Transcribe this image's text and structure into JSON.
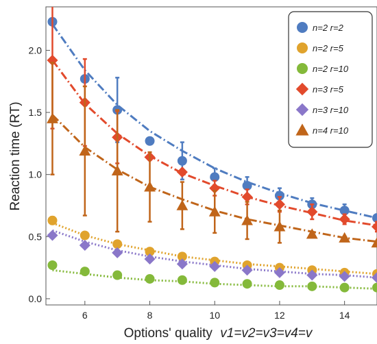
{
  "chart_data": {
    "type": "line",
    "xlabel": "Options' quality",
    "xlabel_math": "v1=v2=v3=v4=v",
    "ylabel": "Reaction time (RT)",
    "xlim": [
      4.8,
      15.0
    ],
    "ylim": [
      -0.05,
      2.35
    ],
    "x_ticks": [
      6,
      8,
      10,
      12,
      14
    ],
    "y_ticks": [
      0.0,
      0.5,
      1.0,
      1.5,
      2.0
    ],
    "x_tick_labels": [
      "6",
      "8",
      "10",
      "12",
      "14"
    ],
    "y_tick_labels": [
      "0.0",
      "0.5",
      "1.0",
      "1.5",
      "2.0"
    ],
    "grid": false,
    "legend_position": "top-right",
    "x": [
      5,
      6,
      7,
      8,
      9,
      10,
      11,
      12,
      13,
      14,
      15
    ],
    "series": [
      {
        "name": "n=2 r=2",
        "color": "#4f7cc0",
        "marker": "circle",
        "dash": "12,4,2,4",
        "values": [
          2.23,
          1.77,
          1.52,
          1.27,
          1.11,
          0.98,
          0.91,
          0.83,
          0.76,
          0.71,
          0.65
        ],
        "errors": [
          0.0,
          0.0,
          0.26,
          0.0,
          0.15,
          0.07,
          0.07,
          0.06,
          0.05,
          0.05,
          0.03
        ],
        "fit": [
          2.21,
          1.84,
          1.56,
          1.35,
          1.19,
          1.05,
          0.94,
          0.85,
          0.77,
          0.71,
          0.65
        ]
      },
      {
        "name": "n=2 r=5",
        "color": "#e0a32d",
        "marker": "circle",
        "dash": "2,3",
        "values": [
          0.63,
          0.51,
          0.44,
          0.38,
          0.34,
          0.3,
          0.27,
          0.25,
          0.23,
          0.21,
          0.2
        ],
        "errors": [
          0.03,
          0.0,
          0.0,
          0.0,
          0.0,
          0.0,
          0.0,
          0.0,
          0.0,
          0.0,
          0.0
        ],
        "fit": [
          0.61,
          0.51,
          0.44,
          0.39,
          0.34,
          0.31,
          0.28,
          0.26,
          0.24,
          0.22,
          0.2
        ]
      },
      {
        "name": "n=2 r=10",
        "color": "#84b93a",
        "marker": "circle",
        "dash": "2,3",
        "values": [
          0.27,
          0.22,
          0.19,
          0.16,
          0.15,
          0.13,
          0.12,
          0.11,
          0.1,
          0.09,
          0.09
        ],
        "errors": [
          0.0,
          0.0,
          0.0,
          0.0,
          0.0,
          0.0,
          0.0,
          0.0,
          0.0,
          0.0,
          0.0
        ],
        "fit": [
          0.23,
          0.2,
          0.17,
          0.15,
          0.14,
          0.12,
          0.11,
          0.1,
          0.1,
          0.09,
          0.08
        ]
      },
      {
        "name": "n=3 r=5",
        "color": "#e24a2c",
        "marker": "diamond",
        "dash": "12,4,2,4",
        "values": [
          1.92,
          1.58,
          1.3,
          1.14,
          1.02,
          0.89,
          0.82,
          0.76,
          0.7,
          0.64,
          0.58
        ],
        "errors": [
          0.55,
          0.35,
          0.21,
          0.0,
          0.0,
          0.06,
          0.06,
          0.06,
          0.06,
          0.04,
          0.04
        ],
        "fit": [
          1.92,
          1.57,
          1.33,
          1.15,
          1.01,
          0.91,
          0.82,
          0.75,
          0.69,
          0.63,
          0.59
        ]
      },
      {
        "name": "n=3 r=10",
        "color": "#8a77c9",
        "marker": "diamond",
        "dash": "2,3",
        "values": [
          0.51,
          0.43,
          0.37,
          0.32,
          0.28,
          0.26,
          0.23,
          0.21,
          0.19,
          0.18,
          0.17
        ],
        "errors": [
          0.0,
          0.0,
          0.0,
          0.0,
          0.0,
          0.0,
          0.0,
          0.0,
          0.0,
          0.0,
          0.0
        ],
        "fit": [
          0.55,
          0.46,
          0.39,
          0.34,
          0.3,
          0.27,
          0.24,
          0.22,
          0.2,
          0.19,
          0.17
        ]
      },
      {
        "name": "n=4 r=10",
        "color": "#c0651a",
        "marker": "triangle",
        "dash": "12,4,2,4",
        "values": [
          1.45,
          1.19,
          1.03,
          0.9,
          0.75,
          0.7,
          0.63,
          0.58,
          0.52,
          0.49,
          0.45
        ],
        "errors": [
          0.45,
          0.52,
          0.49,
          0.28,
          0.19,
          0.17,
          0.15,
          0.13,
          0.0,
          0.0,
          0.0
        ],
        "fit": [
          1.48,
          1.22,
          1.04,
          0.9,
          0.8,
          0.71,
          0.64,
          0.59,
          0.54,
          0.49,
          0.46
        ]
      }
    ]
  }
}
